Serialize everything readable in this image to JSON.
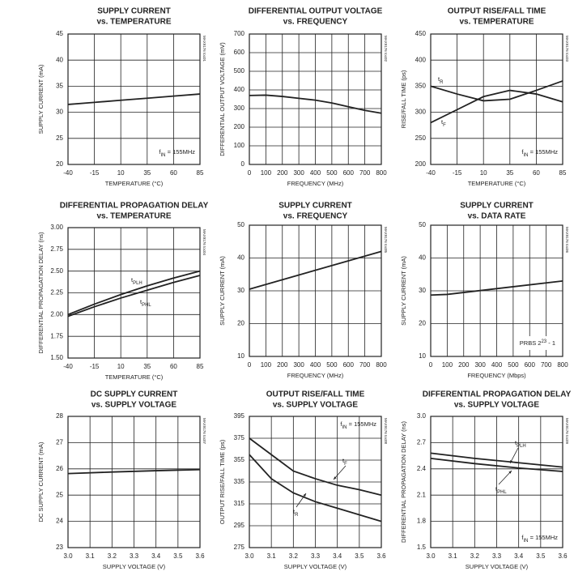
{
  "chart_data": [
    {
      "type": "line",
      "title": "SUPPLY CURRENT",
      "subtitle": "vs. TEMPERATURE",
      "xlabel": "TEMPERATURE (°C)",
      "ylabel": "SUPPLY CURRENT (mA)",
      "figure_id": "MAX9176 toc01",
      "x": [
        -40,
        -15,
        10,
        35,
        60,
        85
      ],
      "xlim": [
        -40,
        85
      ],
      "xticks": [
        -40,
        -15,
        10,
        35,
        60,
        85
      ],
      "ylim": [
        20,
        45
      ],
      "yticks": [
        20,
        25,
        30,
        35,
        40,
        45
      ],
      "grid": true,
      "series": [
        {
          "name": "",
          "color": "#222222",
          "values": [
            31.5,
            31.9,
            32.3,
            32.7,
            33.1,
            33.5
          ]
        }
      ],
      "annotations": [
        {
          "parts": [
            "f",
            "IN",
            " = 155MHz"
          ],
          "style": "sub"
        }
      ]
    },
    {
      "type": "line",
      "title": "DIFFERENTIAL OUTPUT VOLTAGE",
      "subtitle": "vs. FREQUENCY",
      "xlabel": "FREQUENCY (MHz)",
      "ylabel": "DIFFERENTIAL OUTPUT VOLTAGE (mV)",
      "figure_id": "MAX9176 toc02",
      "x": [
        0,
        100,
        200,
        300,
        400,
        500,
        600,
        700,
        800
      ],
      "xlim": [
        0,
        800
      ],
      "xticks": [
        0,
        100,
        200,
        300,
        400,
        500,
        600,
        700,
        800
      ],
      "ylim": [
        0,
        700
      ],
      "yticks": [
        0,
        100,
        200,
        300,
        400,
        500,
        600,
        700
      ],
      "grid": true,
      "series": [
        {
          "name": "",
          "color": "#222222",
          "values": [
            370,
            372,
            365,
            355,
            345,
            330,
            310,
            290,
            275
          ]
        }
      ]
    },
    {
      "type": "line",
      "title": "OUTPUT RISE/FALL TIME",
      "subtitle": "vs. TEMPERATURE",
      "xlabel": "TEMPERATURE (°C)",
      "ylabel": "RISE/FALL TIME (ps)",
      "figure_id": "MAX9176 toc03",
      "x": [
        -40,
        -15,
        10,
        35,
        60,
        85
      ],
      "xlim": [
        -40,
        85
      ],
      "xticks": [
        -40,
        -15,
        10,
        35,
        60,
        85
      ],
      "ylim": [
        200,
        450
      ],
      "yticks": [
        200,
        250,
        300,
        350,
        400,
        450
      ],
      "grid": true,
      "series": [
        {
          "name": "tR",
          "color": "#222222",
          "values": [
            350,
            335,
            322,
            325,
            342,
            360
          ]
        },
        {
          "name": "tF",
          "color": "#222222",
          "values": [
            280,
            305,
            330,
            342,
            335,
            320
          ]
        }
      ],
      "annotations": [
        {
          "parts": [
            "f",
            "IN",
            " = 155MHz"
          ],
          "style": "sub"
        }
      ]
    },
    {
      "type": "line",
      "title": "DIFFERENTIAL PROPAGATION DELAY",
      "subtitle": "vs. TEMPERATURE",
      "xlabel": "TEMPERATURE (°C)",
      "ylabel": "DIFFERENTIAL PROPAGATION DELAY (ns)",
      "figure_id": "MAX9176 toc04",
      "x": [
        -40,
        -15,
        10,
        35,
        60,
        85
      ],
      "xlim": [
        -40,
        85
      ],
      "xticks": [
        -40,
        -15,
        10,
        35,
        60,
        85
      ],
      "ylim": [
        1.5,
        3
      ],
      "yticks": [
        {
          "value": 1.5,
          "label": "1.50"
        },
        1.75,
        {
          "value": 2,
          "label": "2.00"
        },
        2.25,
        {
          "value": 2.5,
          "label": "2.50"
        },
        2.75,
        {
          "value": 3,
          "label": "3.00"
        }
      ],
      "grid": true,
      "series": [
        {
          "name": "tPLH",
          "color": "#222222",
          "values": [
            2.0,
            2.12,
            2.23,
            2.33,
            2.42,
            2.5
          ]
        },
        {
          "name": "tPHL",
          "color": "#222222",
          "values": [
            1.98,
            2.09,
            2.19,
            2.28,
            2.37,
            2.45
          ]
        }
      ]
    },
    {
      "type": "line",
      "title": "SUPPLY CURRENT",
      "subtitle": "vs. FREQUENCY",
      "xlabel": "FREQUENCY (MHz)",
      "ylabel": "SUPPLY CURRENT (mA)",
      "figure_id": "MAX9176 toc05",
      "x": [
        0,
        800
      ],
      "xlim": [
        0,
        800
      ],
      "xticks": [
        0,
        100,
        200,
        300,
        400,
        500,
        600,
        700,
        800
      ],
      "ylim": [
        10,
        50
      ],
      "yticks": [
        10,
        20,
        30,
        40,
        50
      ],
      "grid": true,
      "series": [
        {
          "name": "",
          "color": "#222222",
          "values": [
            30.5,
            42
          ]
        }
      ]
    },
    {
      "type": "line",
      "title": "SUPPLY CURRENT",
      "subtitle": "vs. DATA RATE",
      "xlabel": "FREQUENCY (Mbps)",
      "ylabel": "SUPPLY CURRENT (mA)",
      "figure_id": "MAX9176 toc06",
      "x": [
        0,
        100,
        800
      ],
      "xlim": [
        0,
        800
      ],
      "xticks": [
        0,
        100,
        200,
        300,
        400,
        500,
        600,
        700,
        800
      ],
      "ylim": [
        10,
        50
      ],
      "yticks": [
        10,
        20,
        30,
        40,
        50
      ],
      "grid": true,
      "series": [
        {
          "name": "",
          "color": "#222222",
          "values": [
            28.7,
            28.9,
            33
          ]
        }
      ],
      "annotations": [
        {
          "parts": [
            "PRBS 2",
            "23",
            " - 1"
          ],
          "style": "sup"
        }
      ]
    },
    {
      "type": "line",
      "title": "DC SUPPLY CURRENT",
      "subtitle": "vs. SUPPLY VOLTAGE",
      "xlabel": "SUPPLY VOLTAGE (V)",
      "ylabel": "DC SUPPLY CURRENT (mA)",
      "figure_id": "MAX9176 toc07",
      "x": [
        3.0,
        3.2,
        3.4,
        3.6
      ],
      "xlim": [
        3.0,
        3.6
      ],
      "xticks": [
        {
          "value": 3,
          "label": "3.0"
        },
        3.1,
        3.2,
        3.3,
        3.4,
        3.5,
        3.6
      ],
      "ylim": [
        23,
        28
      ],
      "yticks": [
        23,
        24,
        25,
        26,
        27,
        28
      ],
      "grid": true,
      "series": [
        {
          "name": "",
          "color": "#222222",
          "values": [
            25.82,
            25.88,
            25.93,
            25.97
          ]
        }
      ]
    },
    {
      "type": "line",
      "title": "OUTPUT RISE/FALL TIME",
      "subtitle": "vs. SUPPLY VOLTAGE",
      "xlabel": "SUPPLY VOLTAGE (V)",
      "ylabel": "OUTPUT RISE/FALL TIME (ps)",
      "figure_id": "MAX9176 toc08",
      "x": [
        3.0,
        3.1,
        3.2,
        3.3,
        3.4,
        3.5,
        3.6
      ],
      "xlim": [
        3.0,
        3.6
      ],
      "xticks": [
        {
          "value": 3,
          "label": "3.0"
        },
        3.1,
        3.2,
        3.3,
        3.4,
        3.5,
        3.6
      ],
      "ylim": [
        275,
        395
      ],
      "yticks": [
        275,
        295,
        315,
        335,
        355,
        375,
        395
      ],
      "grid": true,
      "series": [
        {
          "name": "tF",
          "color": "#222222",
          "values": [
            375,
            360,
            345,
            338,
            332,
            328,
            323
          ]
        },
        {
          "name": "tR",
          "color": "#222222",
          "values": [
            360,
            338,
            325,
            317,
            311,
            305,
            299
          ]
        }
      ],
      "annotations": [
        {
          "parts": [
            "f",
            "IN",
            " = 155MHz"
          ],
          "style": "sub"
        }
      ]
    },
    {
      "type": "line",
      "title": "DIFFERENTIAL PROPAGATION DELAY",
      "subtitle": "vs. SUPPLY VOLTAGE",
      "xlabel": "SUPPLY VOLTAGE (V)",
      "ylabel": "DIFFERENTIAL PROPAGATION DELAY (ns)",
      "figure_id": "MAX9176 toc09",
      "x": [
        3.0,
        3.2,
        3.4,
        3.6
      ],
      "xlim": [
        3.0,
        3.6
      ],
      "xticks": [
        {
          "value": 3,
          "label": "3.0"
        },
        3.1,
        3.2,
        3.3,
        3.4,
        3.5,
        3.6
      ],
      "ylim": [
        1.5,
        3
      ],
      "yticks": [
        1.5,
        1.8,
        2.1,
        2.4,
        2.7,
        {
          "value": 3,
          "label": "3.0"
        }
      ],
      "grid": true,
      "series": [
        {
          "name": "tPLH",
          "color": "#222222",
          "values": [
            2.58,
            2.52,
            2.47,
            2.42
          ]
        },
        {
          "name": "tPHL",
          "color": "#222222",
          "values": [
            2.52,
            2.46,
            2.41,
            2.37
          ]
        }
      ],
      "annotations": [
        {
          "parts": [
            "f",
            "IN",
            " = 155MHz"
          ],
          "style": "sub"
        }
      ]
    }
  ]
}
